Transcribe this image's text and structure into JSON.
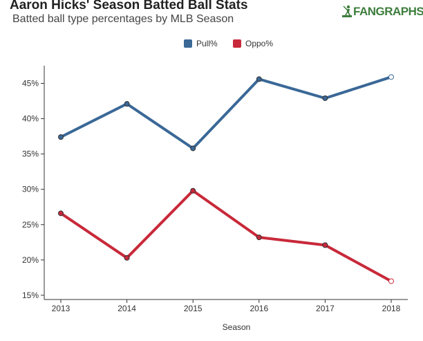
{
  "header": {
    "title": "Aaron Hicks' Season Batted Ball Stats",
    "subtitle": "Batted ball type percentages by MLB Season",
    "logo_text": "FANGRAPHS"
  },
  "chart_data": {
    "type": "line",
    "title": "Aaron Hicks' Season Batted Ball Stats",
    "subtitle": "Batted ball type percentages by MLB Season",
    "xlabel": "Season",
    "ylabel": "",
    "x": [
      "2013",
      "2014",
      "2015",
      "2016",
      "2017",
      "2018"
    ],
    "ylim": [
      14.4,
      47.5
    ],
    "yticks": [
      15,
      20,
      25,
      30,
      35,
      40,
      45
    ],
    "ytick_labels": [
      "15%",
      "20%",
      "25%",
      "30%",
      "35%",
      "40%",
      "45%"
    ],
    "legend_position": "top-center",
    "grid": false,
    "series": [
      {
        "name": "Pull%",
        "color": "#3a6897",
        "values": [
          37.4,
          42.1,
          35.8,
          45.6,
          42.9,
          45.9
        ]
      },
      {
        "name": "Oppo%",
        "color": "#c8293a",
        "values": [
          26.6,
          20.3,
          29.8,
          23.2,
          22.1,
          17.0
        ]
      }
    ]
  }
}
